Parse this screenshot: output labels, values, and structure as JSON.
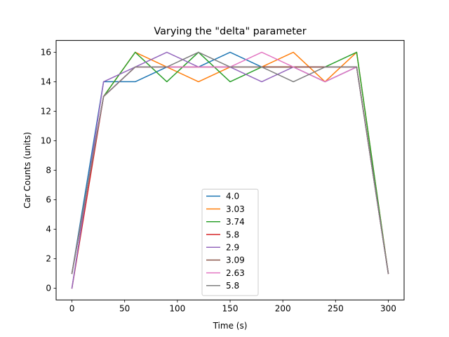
{
  "chart_data": {
    "type": "line",
    "title": "Varying the \"delta\" parameter",
    "xlabel": "Time (s)",
    "ylabel": "Car Counts (units)",
    "xlim": [
      -15,
      315
    ],
    "ylim": [
      -0.8,
      16.8
    ],
    "xticks": [
      0,
      50,
      100,
      150,
      200,
      250,
      300
    ],
    "yticks": [
      0,
      2,
      4,
      6,
      8,
      10,
      12,
      14,
      16
    ],
    "grid": false,
    "legend_position": "lower-center",
    "x": [
      0,
      30,
      60,
      90,
      120,
      150,
      180,
      210,
      240,
      270,
      300
    ],
    "series": [
      {
        "name": "4.0",
        "color": "#1f77b4",
        "values": [
          1,
          14,
          14,
          15,
          15,
          16,
          15,
          15,
          14,
          15,
          1
        ]
      },
      {
        "name": "3.03",
        "color": "#ff7f0e",
        "values": [
          1,
          13,
          16,
          15,
          14,
          15,
          15,
          16,
          14,
          16,
          1
        ]
      },
      {
        "name": "3.74",
        "color": "#2ca02c",
        "values": [
          1,
          13,
          16,
          14,
          16,
          14,
          15,
          15,
          15,
          16,
          1
        ]
      },
      {
        "name": "5.8",
        "color": "#d62728",
        "values": [
          0,
          13,
          15,
          15,
          15,
          15,
          15,
          15,
          15,
          15,
          1
        ]
      },
      {
        "name": "2.9",
        "color": "#9467bd",
        "values": [
          0,
          14,
          15,
          16,
          15,
          15,
          14,
          15,
          15,
          15,
          1
        ]
      },
      {
        "name": "3.09",
        "color": "#8c564b",
        "values": [
          1,
          13,
          15,
          15,
          15,
          15,
          15,
          15,
          15,
          15,
          1
        ]
      },
      {
        "name": "2.63",
        "color": "#e377c2",
        "values": [
          1,
          13,
          15,
          15,
          15,
          15,
          16,
          15,
          14,
          15,
          1
        ]
      },
      {
        "name": "5.8",
        "color": "#7f7f7f",
        "values": [
          1,
          13,
          15,
          15,
          16,
          15,
          15,
          14,
          15,
          15,
          1
        ]
      }
    ]
  }
}
